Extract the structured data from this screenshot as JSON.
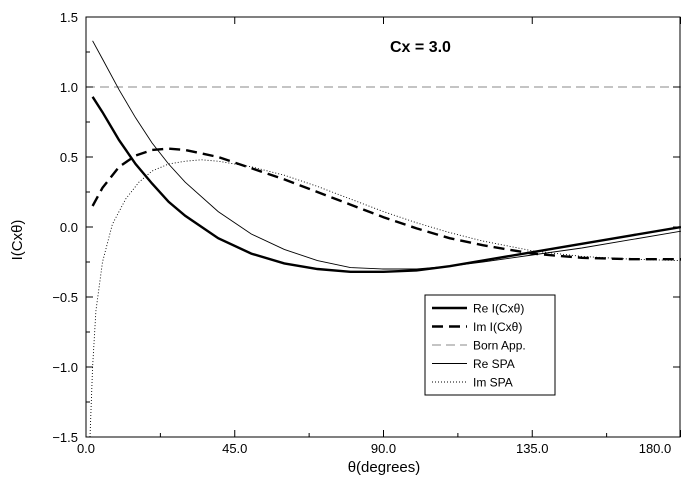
{
  "chart_data": {
    "type": "line",
    "xlabel": "θ(degrees)",
    "ylabel": "I(Cxθ)",
    "xlim": [
      0.0,
      180.0
    ],
    "ylim": [
      -1.5,
      1.5
    ],
    "x_ticks": [
      0.0,
      45.0,
      90.0,
      135.0,
      180.0
    ],
    "x_tick_labels": [
      "0.0",
      "45.0",
      "90.0",
      "135.0",
      "180.0"
    ],
    "y_ticks": [
      -1.5,
      -1.0,
      -0.5,
      0.0,
      0.5,
      1.0,
      1.5
    ],
    "y_tick_labels": [
      "−1.5",
      "−1.0",
      "−0.5",
      "0.0",
      "0.5",
      "1.0",
      "1.5"
    ],
    "annotation": "Cx = 3.0",
    "grid": false,
    "legend_position": "bottom-right",
    "series": [
      {
        "name": "Re I(Cxθ)",
        "style": "thick-solid",
        "x": [
          2,
          5,
          10,
          15,
          20,
          25,
          30,
          40,
          50,
          60,
          70,
          80,
          90,
          100,
          110,
          120,
          135,
          150,
          165,
          180
        ],
        "y": [
          0.93,
          0.82,
          0.62,
          0.45,
          0.31,
          0.18,
          0.08,
          -0.08,
          -0.19,
          -0.26,
          -0.3,
          -0.32,
          -0.32,
          -0.31,
          -0.28,
          -0.24,
          -0.18,
          -0.12,
          -0.06,
          0.0
        ]
      },
      {
        "name": "Im I(Cxθ)",
        "style": "thick-dashed",
        "x": [
          2,
          5,
          10,
          15,
          20,
          25,
          30,
          40,
          50,
          60,
          70,
          80,
          90,
          100,
          110,
          120,
          135,
          150,
          165,
          180
        ],
        "y": [
          0.15,
          0.28,
          0.43,
          0.51,
          0.55,
          0.56,
          0.55,
          0.5,
          0.42,
          0.34,
          0.25,
          0.16,
          0.07,
          -0.01,
          -0.08,
          -0.13,
          -0.19,
          -0.22,
          -0.23,
          -0.23
        ]
      },
      {
        "name": "Born App.",
        "style": "thin-dashed-gray",
        "x": [
          0,
          180
        ],
        "y": [
          1.0,
          1.0
        ]
      },
      {
        "name": "Re SPA",
        "style": "thin-solid",
        "x": [
          2,
          5,
          10,
          15,
          20,
          25,
          30,
          40,
          50,
          60,
          70,
          80,
          90,
          100,
          110,
          120,
          135,
          150,
          165,
          180
        ],
        "y": [
          1.33,
          1.2,
          0.98,
          0.78,
          0.6,
          0.45,
          0.32,
          0.11,
          -0.05,
          -0.16,
          -0.24,
          -0.29,
          -0.3,
          -0.3,
          -0.28,
          -0.25,
          -0.2,
          -0.15,
          -0.09,
          -0.03
        ]
      },
      {
        "name": "Im SPA",
        "style": "thin-dotted",
        "x": [
          1.2,
          2,
          3,
          5,
          8,
          12,
          16,
          20,
          25,
          30,
          35,
          40,
          50,
          60,
          70,
          80,
          90,
          100,
          110,
          120,
          135,
          150,
          165,
          180
        ],
        "y": [
          -1.5,
          -1.0,
          -0.6,
          -0.25,
          0.02,
          0.2,
          0.32,
          0.4,
          0.45,
          0.47,
          0.48,
          0.47,
          0.43,
          0.37,
          0.29,
          0.2,
          0.11,
          0.03,
          -0.04,
          -0.1,
          -0.17,
          -0.21,
          -0.23,
          -0.24
        ]
      }
    ]
  }
}
